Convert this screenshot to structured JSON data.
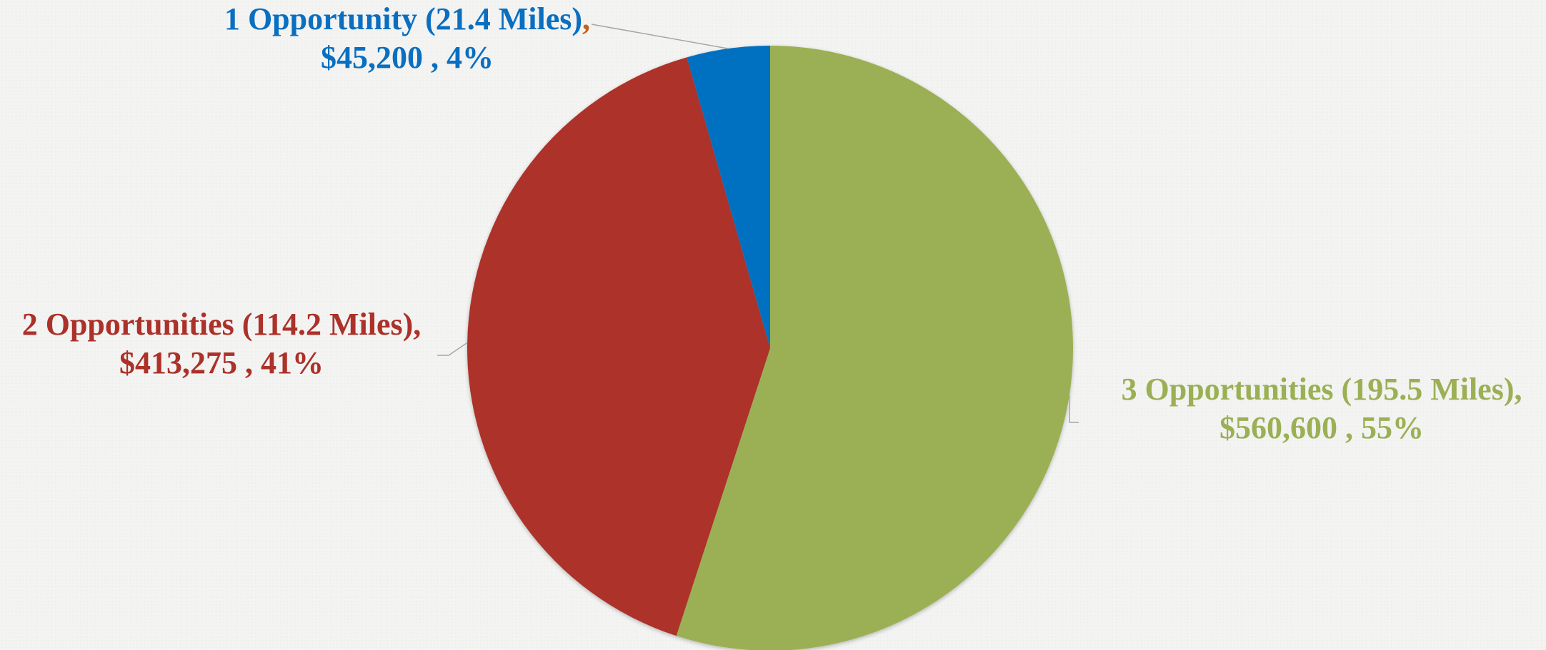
{
  "chart_data": {
    "type": "pie",
    "title": "",
    "start_angle_deg": 0,
    "direction": "clockwise",
    "slices": [
      {
        "name": "3 Opportunities (195.5 Miles)",
        "value": 560600,
        "value_label": "$560,600",
        "percent_label": "55%",
        "color": "#9bb054",
        "label_line1": "3 Opportunities (195.5 Miles),",
        "label_line2": "$560,600 , 55%"
      },
      {
        "name": "2 Opportunities (114.2 Miles)",
        "value": 413275,
        "value_label": "$413,275",
        "percent_label": "41%",
        "color": "#ac3129",
        "label_line1": "2 Opportunities (114.2 Miles),",
        "label_line2": "$413,275 , 41%"
      },
      {
        "name": "1 Opportunity (21.4 Miles)",
        "value": 45200,
        "value_label": "$45,200",
        "percent_label": "4%",
        "color": "#0170c1",
        "label_line1": "1 Opportunity (21.4 Miles)",
        "label_line1_suffix": ",",
        "label_line2": "$45,200 , 4%"
      }
    ],
    "label_colors": {
      "slice_1": "#0a6fc0",
      "slice_1_comma": "#c4621c",
      "slice_2": "#ac3129",
      "slice_3": "#9bb054"
    },
    "leader_line_color": "#a6a6a6",
    "legend": "none"
  }
}
